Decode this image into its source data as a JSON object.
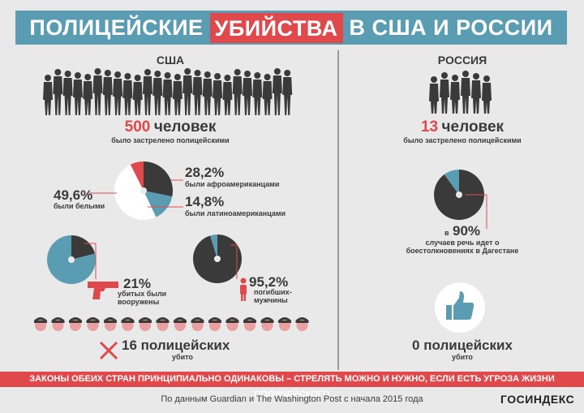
{
  "title": {
    "part1": "ПОЛИЦЕЙСКИЕ",
    "highlight": "УБИЙСТВА",
    "part2": "В США И РОССИИ"
  },
  "usa": {
    "label": "США",
    "victims_number": "500",
    "victims_unit": "человек",
    "victims_caption": "было застрелено полицейскими",
    "african_american_pct": "28,2%",
    "african_american_caption": "были афроамериканцами",
    "white_pct": "49,6%",
    "white_caption": "были белыми",
    "latino_pct": "14,8%",
    "latino_caption": "были латиноамериканцами",
    "armed_pct": "21%",
    "armed_caption_1": "убитых были",
    "armed_caption_2": "вооружены",
    "men_pct": "95,2%",
    "men_caption_1": "погибших-",
    "men_caption_2": "мужчины",
    "police_killed": "16 полицейских",
    "police_killed_caption": "убито"
  },
  "russia": {
    "label": "РОССИЯ",
    "victims_number": "13",
    "victims_unit": "человек",
    "victims_caption": "было застрелено полицейскими",
    "dagestan_prefix": "в",
    "dagestan_pct": "90%",
    "dagestan_caption_1": "случаев речь идет о",
    "dagestan_caption_2": "боестолкновениях в Дагестане",
    "police_killed": "0 полицейских",
    "police_killed_caption": "убито"
  },
  "banner": "ЗАКОНЫ ОБЕИХ СТРАН ПРИНЦИПИАЛЬНО ОДИНАКОВЫ – СТРЕЛЯТЬ МОЖНО И НУЖНО, ЕСЛИ ЕСТЬ УГРОЗА ЖИЗНИ ПОЛИЦЕЙСКОГО",
  "source": "По данным Guardian и The Washington Post с начала 2015 года",
  "logo": "ГОСИНДЕКС",
  "colors": {
    "red": "#e0494b",
    "blue": "#5a9db3",
    "dark": "#3a3a3a",
    "bg": "#e9e9e9"
  },
  "charts": {
    "race": {
      "african_american": 28.2,
      "latino": 14.8,
      "white": 49.6
    },
    "armed": {
      "armed": 21
    },
    "men": {
      "men": 95.2
    },
    "dagestan": {
      "dagestan": 90
    }
  }
}
